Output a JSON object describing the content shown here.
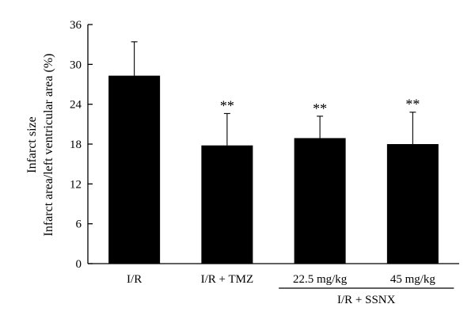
{
  "chart_data": {
    "type": "bar",
    "ylabel_line1": "Infarct size",
    "ylabel_line2": "Infarct area/left ventricular area (%)",
    "ylim": [
      0,
      36
    ],
    "yticks": [
      "0",
      "6",
      "12",
      "18",
      "24",
      "30",
      "36"
    ],
    "categories": [
      "I/R",
      "I/R + TMZ",
      "22.5 mg/kg",
      "45 mg/kg"
    ],
    "values": [
      28.3,
      17.8,
      18.9,
      18.0
    ],
    "errors": [
      5.1,
      4.8,
      3.3,
      4.8
    ],
    "significance": [
      "",
      "**",
      "**",
      "**"
    ],
    "group_label": "I/R + SSNX",
    "bar_color": "#000000",
    "grid": false
  }
}
